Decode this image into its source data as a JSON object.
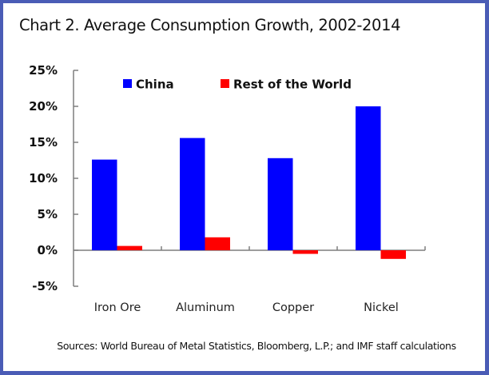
{
  "chart_data": {
    "type": "bar",
    "title": "Chart 2. Average Consumption Growth, 2002-2014",
    "xlabel": "",
    "ylabel": "",
    "categories": [
      "Iron Ore",
      "Aluminum",
      "Copper",
      "Nickel"
    ],
    "series": [
      {
        "name": "China",
        "color": "#0000ff",
        "values": [
          12.6,
          15.6,
          12.8,
          20.0
        ]
      },
      {
        "name": "Rest of the World",
        "color": "#ff0000",
        "values": [
          0.6,
          1.8,
          -0.5,
          -1.2
        ]
      }
    ],
    "ylim": [
      -5,
      25
    ],
    "yticks": [
      -5,
      0,
      5,
      10,
      15,
      20,
      25
    ],
    "ytick_labels": [
      "-5%",
      "0%",
      "5%",
      "10%",
      "15%",
      "20%",
      "25%"
    ],
    "grid": false,
    "legend_position": "top",
    "source": "Sources: World Bureau of Metal Statistics, Bloomberg, L.P.; and IMF staff calculations"
  },
  "colors": {
    "frame_border": "#4a5cb6",
    "axis": "#7f7f7f"
  }
}
